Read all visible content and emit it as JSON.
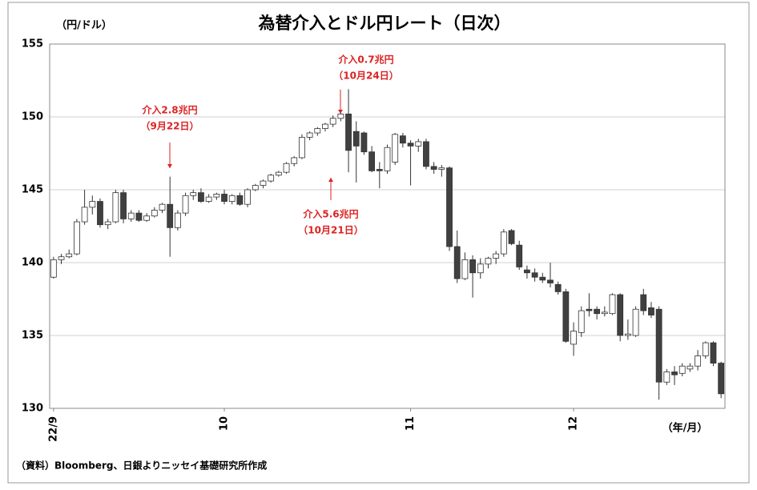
{
  "chart_data": {
    "type": "candlestick",
    "title": "為替介入とドル円レート（日次）",
    "y_label": "（円/ドル）",
    "x_label": "（年/月）",
    "source": "（資料）Bloomberg、日銀よりニッセイ基礎研究所作成",
    "categories": [
      "22/9",
      null,
      null,
      null,
      null,
      null,
      null,
      null,
      null,
      null,
      null,
      null,
      null,
      null,
      null,
      null,
      null,
      null,
      null,
      null,
      null,
      null,
      "10",
      null,
      null,
      null,
      null,
      null,
      null,
      null,
      null,
      null,
      null,
      null,
      null,
      null,
      null,
      null,
      null,
      null,
      null,
      null,
      null,
      null,
      null,
      null,
      "11",
      null,
      null,
      null,
      null,
      null,
      null,
      null,
      null,
      null,
      null,
      null,
      null,
      null,
      null,
      null,
      null,
      null,
      null,
      null,
      null,
      "12",
      null,
      null,
      null,
      null,
      null,
      null,
      null,
      null,
      null,
      null,
      null,
      null,
      null,
      null,
      null,
      null,
      null,
      null,
      null
    ],
    "open": [
      139.0,
      140.2,
      140.4,
      140.6,
      142.8,
      143.8,
      144.2,
      142.6,
      142.8,
      144.8,
      143.0,
      143.4,
      142.9,
      143.2,
      143.6,
      144.0,
      142.4,
      143.4,
      144.6,
      144.8,
      144.2,
      144.5,
      144.7,
      144.2,
      144.6,
      144.0,
      145.0,
      145.3,
      145.6,
      146.0,
      146.2,
      146.8,
      147.2,
      148.6,
      148.9,
      149.2,
      149.5,
      149.9,
      150.2,
      149.0,
      148.9,
      147.6,
      146.4,
      146.3,
      146.9,
      148.7,
      148.2,
      148.0,
      148.3,
      146.6,
      146.4,
      146.5,
      141.1,
      138.9,
      140.2,
      139.3,
      139.9,
      140.3,
      140.6,
      142.2,
      141.2,
      139.5,
      139.3,
      139.0,
      138.8,
      138.5,
      138.0,
      134.4,
      135.2,
      136.8,
      136.8,
      136.5,
      136.5,
      137.8,
      135.0,
      135.0,
      137.8,
      136.9,
      136.8,
      131.8,
      132.5,
      132.4,
      132.7,
      132.9,
      133.6,
      134.5,
      133.1
    ],
    "high": [
      140.4,
      140.6,
      140.9,
      143.0,
      145.0,
      144.6,
      144.4,
      143.0,
      145.0,
      145.0,
      143.6,
      143.6,
      143.4,
      143.8,
      144.1,
      145.9,
      143.6,
      144.8,
      145.0,
      145.1,
      144.7,
      144.8,
      145.0,
      144.7,
      144.8,
      145.1,
      145.4,
      145.7,
      146.1,
      146.3,
      146.9,
      147.3,
      148.8,
      149.0,
      149.3,
      149.6,
      150.1,
      150.3,
      151.9,
      149.7,
      149.0,
      148.0,
      146.9,
      148.1,
      148.9,
      148.9,
      148.4,
      148.5,
      148.5,
      146.9,
      146.7,
      146.6,
      142.2,
      140.7,
      140.5,
      140.3,
      140.4,
      140.8,
      142.3,
      142.3,
      141.5,
      139.8,
      139.6,
      139.3,
      140.0,
      138.7,
      138.2,
      135.9,
      137.0,
      137.9,
      137.0,
      137.0,
      137.9,
      137.9,
      136.1,
      137.0,
      138.2,
      137.3,
      137.0,
      132.7,
      132.9,
      133.1,
      133.1,
      134.0,
      134.6,
      134.6,
      133.2
    ],
    "low": [
      138.9,
      139.9,
      140.3,
      140.5,
      142.6,
      143.3,
      142.4,
      142.3,
      142.7,
      142.7,
      142.8,
      142.8,
      142.8,
      143.1,
      143.4,
      140.4,
      142.2,
      143.2,
      144.3,
      144.1,
      144.1,
      144.3,
      144.0,
      144.0,
      143.9,
      143.8,
      144.9,
      145.1,
      145.5,
      145.9,
      146.1,
      146.6,
      147.1,
      148.4,
      148.7,
      149.0,
      149.3,
      149.7,
      146.2,
      145.5,
      147.4,
      146.2,
      145.1,
      146.1,
      146.7,
      147.9,
      145.3,
      147.6,
      146.4,
      146.1,
      145.9,
      140.8,
      138.6,
      138.8,
      137.6,
      138.9,
      139.6,
      139.9,
      140.4,
      141.2,
      139.5,
      138.9,
      138.7,
      138.6,
      138.3,
      137.8,
      134.5,
      133.6,
      134.9,
      136.3,
      136.1,
      136.3,
      136.4,
      134.6,
      134.7,
      134.9,
      136.4,
      136.2,
      130.6,
      131.6,
      131.6,
      132.2,
      132.5,
      132.6,
      133.4,
      132.9,
      130.7
    ],
    "close": [
      140.2,
      140.4,
      140.6,
      142.8,
      143.8,
      144.2,
      142.6,
      142.8,
      144.8,
      143.0,
      143.4,
      142.9,
      143.2,
      143.6,
      144.0,
      142.4,
      143.4,
      144.6,
      144.8,
      144.2,
      144.5,
      144.7,
      144.2,
      144.6,
      144.0,
      145.0,
      145.3,
      145.6,
      146.0,
      146.2,
      146.8,
      147.2,
      148.6,
      148.9,
      149.2,
      149.5,
      149.9,
      150.2,
      147.7,
      148.0,
      147.6,
      146.3,
      146.3,
      147.9,
      148.8,
      148.2,
      148.0,
      148.3,
      146.6,
      146.4,
      146.5,
      141.1,
      138.9,
      140.2,
      139.3,
      139.9,
      140.3,
      140.6,
      142.1,
      141.3,
      139.7,
      139.3,
      139.0,
      138.8,
      138.6,
      138.0,
      134.6,
      135.3,
      136.7,
      136.7,
      136.5,
      136.6,
      137.8,
      135.0,
      135.1,
      136.8,
      136.7,
      136.4,
      131.8,
      132.5,
      132.3,
      132.9,
      132.9,
      133.6,
      134.5,
      133.1,
      131.0
    ],
    "up_color": "#ffffff",
    "down_color": "#404040",
    "ylim": [
      130,
      155
    ],
    "yticks": [
      130,
      135,
      140,
      145,
      150,
      155
    ],
    "grid": true,
    "annotations": [
      {
        "lines": [
          "介入2.8兆円",
          "（9月22日）"
        ]
      },
      {
        "lines": [
          "介入5.6兆円",
          "（10月21日）"
        ]
      },
      {
        "lines": [
          "介入0.7兆円",
          "（10月24日）"
        ]
      }
    ]
  }
}
